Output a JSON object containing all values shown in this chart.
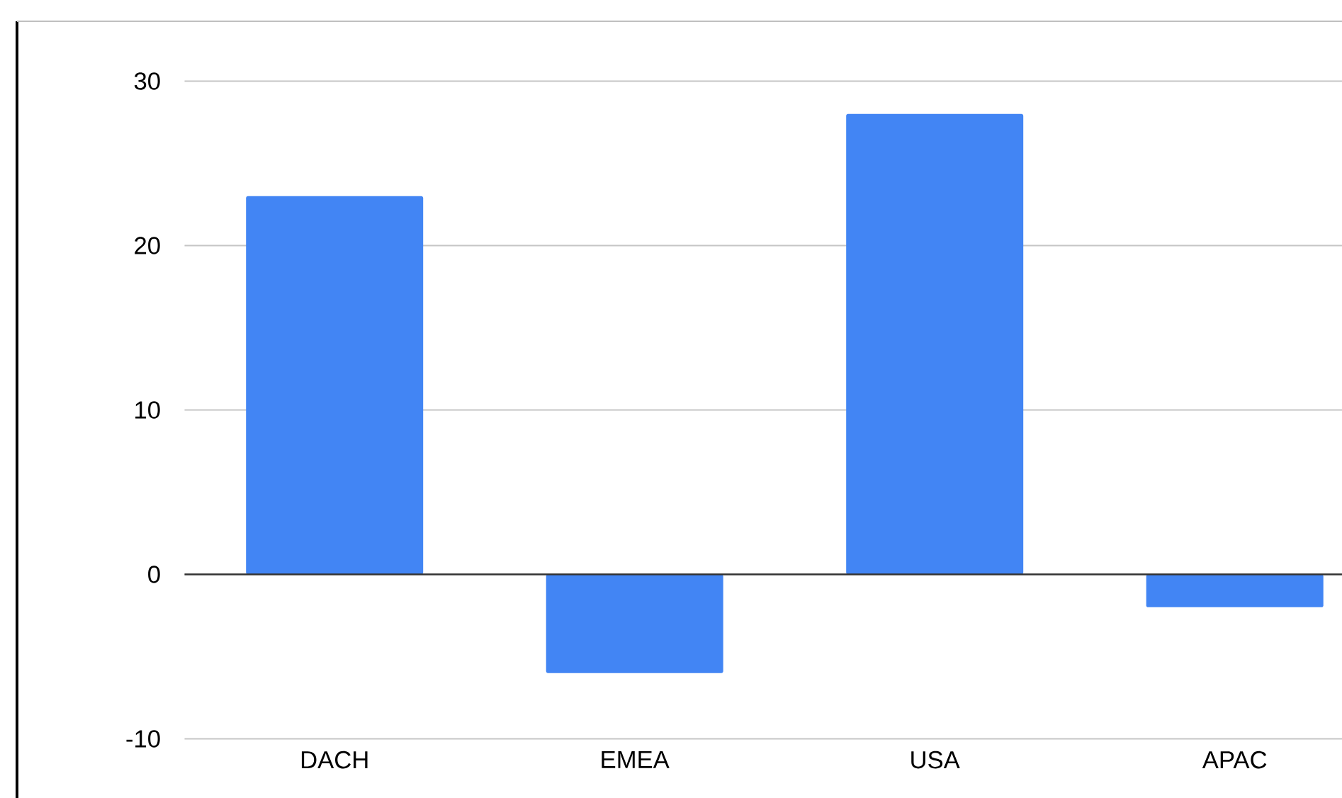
{
  "chart_data": {
    "type": "bar",
    "categories": [
      "DACH",
      "EMEA",
      "USA",
      "APAC"
    ],
    "values": [
      23,
      -6,
      28,
      -2
    ],
    "color": "#4285f4",
    "ylim": [
      -10,
      30
    ],
    "yticks": [
      -10,
      0,
      10,
      20,
      30
    ],
    "grid": "y"
  }
}
